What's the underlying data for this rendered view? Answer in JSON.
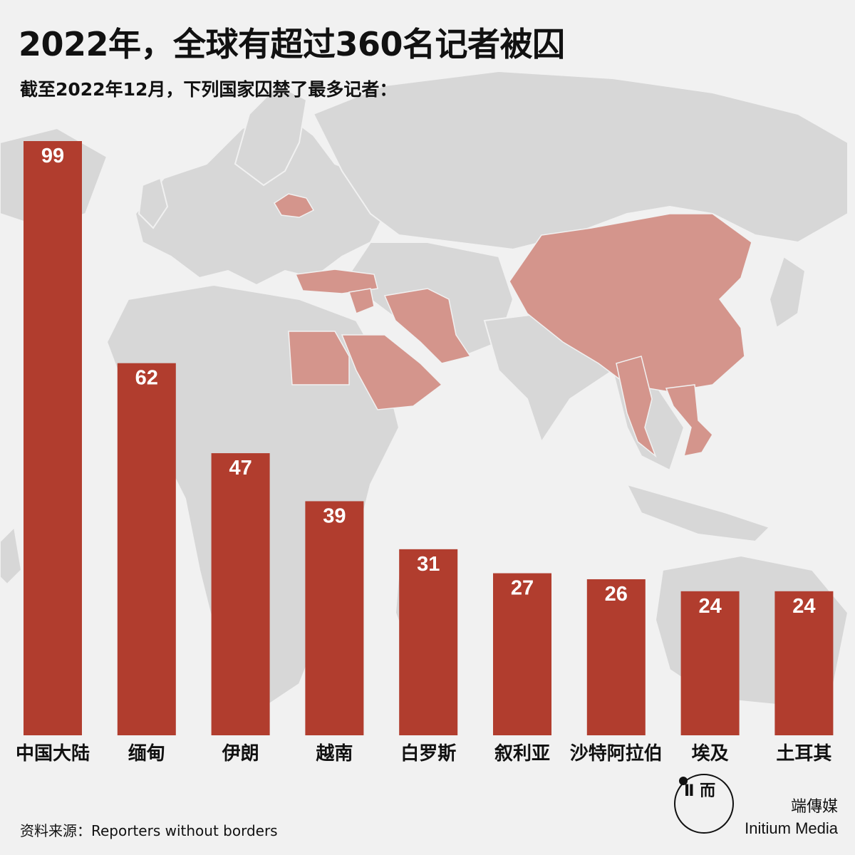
{
  "header": {
    "title": "2022年，全球有超过360名记者被囚",
    "subtitle": "截至2022年12月，下列国家囚禁了最多记者："
  },
  "footer": {
    "source": "资料来源：Reporters without borders",
    "brand_cn": "端傳媒",
    "brand_en": "Initium Media",
    "logo_glyph": "Ⅱ 而"
  },
  "colors": {
    "bar": "#b13d2e",
    "map_land": "#d7d7d7",
    "map_highlight": "#d4958c",
    "background": "#f1f1f1"
  },
  "chart_data": {
    "type": "bar",
    "title": "2022年，全球有超过360名记者被囚",
    "subtitle": "截至2022年12月，下列国家囚禁了最多记者：",
    "categories": [
      "中国大陆",
      "缅甸",
      "伊朗",
      "越南",
      "白罗斯",
      "叙利亚",
      "沙特阿拉伯",
      "埃及",
      "土耳其"
    ],
    "values": [
      99,
      62,
      47,
      39,
      31,
      27,
      26,
      24,
      24
    ],
    "xlabel": "",
    "ylabel": "",
    "ylim": [
      0,
      99
    ],
    "grid": false,
    "legend": "none"
  }
}
